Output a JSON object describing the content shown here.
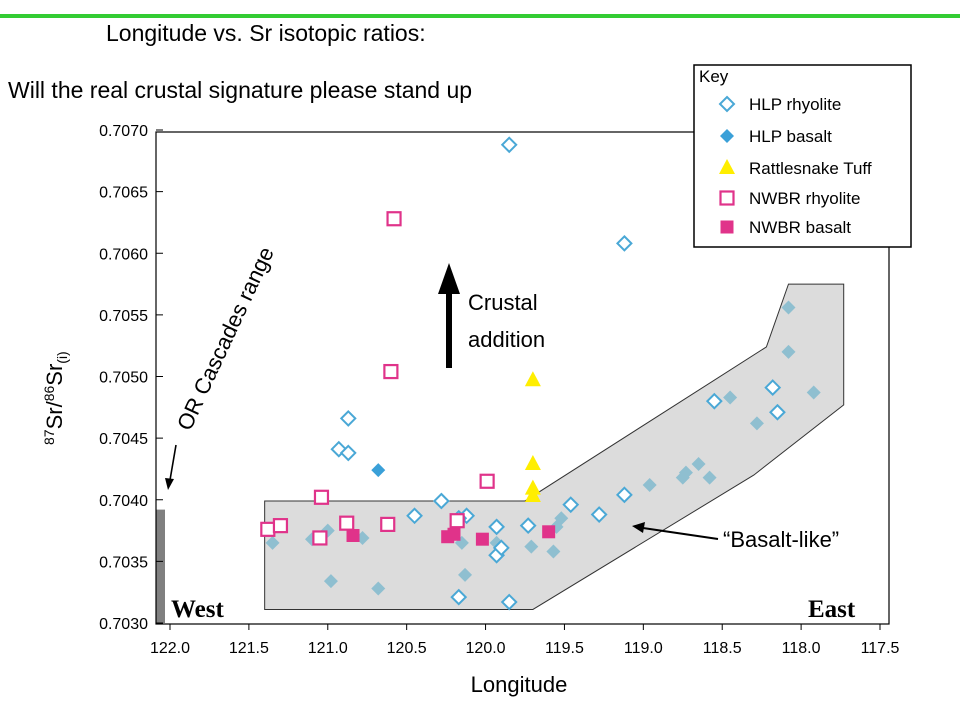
{
  "header": {
    "title": "Longitude vs. Sr isotopic ratios:",
    "subtitle": "Will the real crustal signature please stand up",
    "rule_color": "#33cc33"
  },
  "chart_data": {
    "type": "scatter",
    "xlabel": "Longitude",
    "ylabel": "87Sr/86Sr(i)",
    "ylabel_parts": {
      "sup1": "87",
      "a": "Sr/",
      "sup2": "86",
      "b": "Sr",
      "sub": "(i)"
    },
    "xlim": [
      122.0,
      117.5
    ],
    "x_reversed": true,
    "ylim": [
      0.703,
      0.707
    ],
    "x_ticks": [
      "122.0",
      "121.5",
      "121.0",
      "120.5",
      "120.0",
      "119.5",
      "119.0",
      "118.5",
      "118.0",
      "117.5"
    ],
    "y_ticks": [
      "0.7030",
      "0.7035",
      "0.7040",
      "0.7045",
      "0.7050",
      "0.7055",
      "0.7060",
      "0.7065",
      "0.7070"
    ],
    "grid": false,
    "legend": {
      "title": "Key",
      "position": "top-right",
      "items": [
        {
          "label": "HLP  rhyolite",
          "series": "hlp_rhyolite"
        },
        {
          "label": "HLP  basalt",
          "series": "hlp_basalt"
        },
        {
          "label": "Rattlesnake Tuff",
          "series": "rattlesnake_tuff"
        },
        {
          "label": "NWBR  rhyolite",
          "series": "nwbr_rhyolite"
        },
        {
          "label": "NWBR  basalt",
          "series": "nwbr_basalt"
        }
      ]
    },
    "series": [
      {
        "name": "HLP  rhyolite",
        "id": "hlp_rhyolite",
        "marker": "diamond-open",
        "color": "#4aa8d6",
        "points": [
          [
            119.85,
            0.70688
          ],
          [
            119.12,
            0.70608
          ],
          [
            120.87,
            0.70466
          ],
          [
            120.93,
            0.70441
          ],
          [
            120.87,
            0.70438
          ],
          [
            120.28,
            0.70399
          ],
          [
            120.45,
            0.70387
          ],
          [
            120.12,
            0.70387
          ],
          [
            120.17,
            0.70385
          ],
          [
            119.93,
            0.70378
          ],
          [
            119.73,
            0.70379
          ],
          [
            119.46,
            0.70396
          ],
          [
            119.28,
            0.70388
          ],
          [
            119.12,
            0.70404
          ],
          [
            118.55,
            0.7048
          ],
          [
            118.18,
            0.70491
          ],
          [
            118.15,
            0.70471
          ],
          [
            119.93,
            0.70355
          ],
          [
            119.9,
            0.70361
          ],
          [
            120.17,
            0.70321
          ],
          [
            119.85,
            0.70317
          ]
        ]
      },
      {
        "name": "HLP  basalt",
        "id": "hlp_basalt",
        "marker": "diamond-filled",
        "color": "#8fbfd0",
        "points": [
          [
            121.35,
            0.70365
          ],
          [
            121.1,
            0.70368
          ],
          [
            121.0,
            0.70375
          ],
          [
            120.98,
            0.70334
          ],
          [
            120.78,
            0.70369
          ],
          [
            120.68,
            0.70328
          ],
          [
            120.15,
            0.70365
          ],
          [
            120.13,
            0.70339
          ],
          [
            119.93,
            0.70365
          ],
          [
            119.71,
            0.70362
          ],
          [
            119.57,
            0.70358
          ],
          [
            119.52,
            0.70385
          ],
          [
            119.55,
            0.70378
          ],
          [
            118.96,
            0.70412
          ],
          [
            118.75,
            0.70418
          ],
          [
            118.73,
            0.70422
          ],
          [
            118.65,
            0.70429
          ],
          [
            118.58,
            0.70418
          ],
          [
            118.45,
            0.70483
          ],
          [
            118.28,
            0.70462
          ],
          [
            118.08,
            0.70556
          ],
          [
            118.08,
            0.7052
          ],
          [
            117.92,
            0.70487
          ]
        ]
      },
      {
        "name": "HLP  basalt (highlighted)",
        "id": "hlp_basalt_blue",
        "marker": "diamond-filled",
        "color": "#3aa0d8",
        "points": [
          [
            120.68,
            0.70424
          ]
        ]
      },
      {
        "name": "Rattlesnake Tuff",
        "id": "rattlesnake_tuff",
        "marker": "triangle",
        "color": "#ffee00",
        "points": [
          [
            119.7,
            0.70497
          ],
          [
            119.7,
            0.70429
          ],
          [
            119.7,
            0.70409
          ],
          [
            119.7,
            0.70403
          ]
        ]
      },
      {
        "name": "NWBR  rhyolite",
        "id": "nwbr_rhyolite",
        "marker": "square-open",
        "color": "#e0338a",
        "points": [
          [
            120.58,
            0.70628
          ],
          [
            120.6,
            0.70504
          ],
          [
            121.04,
            0.70402
          ],
          [
            119.99,
            0.70415
          ],
          [
            121.38,
            0.70376
          ],
          [
            121.3,
            0.70379
          ],
          [
            121.05,
            0.70369
          ],
          [
            120.88,
            0.70381
          ],
          [
            120.62,
            0.7038
          ],
          [
            120.18,
            0.70383
          ]
        ]
      },
      {
        "name": "NWBR  basalt",
        "id": "nwbr_basalt",
        "marker": "square-filled",
        "color": "#e0338a",
        "points": [
          [
            120.84,
            0.70371
          ],
          [
            120.24,
            0.7037
          ],
          [
            120.2,
            0.70372
          ],
          [
            120.02,
            0.70368
          ],
          [
            119.6,
            0.70374
          ]
        ]
      }
    ],
    "annotations": {
      "crustal": [
        "Crustal",
        "addition"
      ],
      "basalt_like": "“Basalt-like”",
      "cascades": "OR Cascades range",
      "west": "West",
      "east": "East"
    },
    "field_polygon": [
      [
        121.4,
        0.70399
      ],
      [
        119.75,
        0.70399
      ],
      [
        118.22,
        0.70524
      ],
      [
        118.08,
        0.70575
      ],
      [
        117.73,
        0.70575
      ],
      [
        117.73,
        0.70477
      ],
      [
        118.3,
        0.7042
      ],
      [
        119.7,
        0.70311
      ],
      [
        121.4,
        0.70311
      ]
    ],
    "cascades_range": [
      0.703,
      0.70392
    ],
    "colors": {
      "field_fill": "#dcdcdc",
      "cascades_bar": "#808080"
    }
  }
}
